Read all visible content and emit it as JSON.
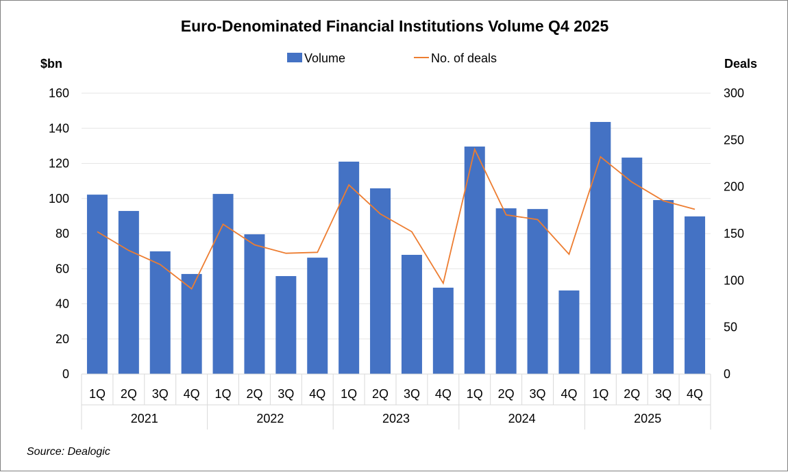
{
  "chart_data": {
    "type": "bar+line",
    "title": "Euro-Denominated Financial Institutions Volume Q4 2025",
    "ylabel_left": "$bn",
    "ylabel_right": "Deals",
    "ylim_left": [
      0,
      160
    ],
    "ylim_right": [
      0,
      300
    ],
    "yticks_left": [
      0,
      20,
      40,
      60,
      80,
      100,
      120,
      140,
      160
    ],
    "yticks_right": [
      0,
      50,
      100,
      150,
      200,
      250,
      300
    ],
    "grid": true,
    "legend_position": "top",
    "categories": [
      "1Q",
      "2Q",
      "3Q",
      "4Q",
      "1Q",
      "2Q",
      "3Q",
      "4Q",
      "1Q",
      "2Q",
      "3Q",
      "4Q",
      "1Q",
      "2Q",
      "3Q",
      "4Q",
      "1Q",
      "2Q",
      "3Q",
      "4Q"
    ],
    "years": [
      "2021",
      "2022",
      "2023",
      "2024",
      "2025"
    ],
    "series": [
      {
        "name": "Volume",
        "type": "bar",
        "axis": "left",
        "color": "#4472C4",
        "values": [
          102.2,
          92.9,
          69.9,
          57.0,
          102.6,
          79.6,
          55.8,
          66.3,
          121.0,
          105.8,
          67.9,
          49.2,
          129.6,
          94.4,
          94.0,
          47.6,
          143.6,
          123.3,
          99.1,
          89.8
        ]
      },
      {
        "name": "No. of deals",
        "type": "line",
        "axis": "right",
        "color": "#ED7D31",
        "values": [
          152,
          132,
          117,
          91,
          160,
          138,
          129,
          130,
          202,
          171,
          152,
          97,
          240,
          170,
          165,
          128,
          232,
          205,
          185,
          176
        ]
      }
    ]
  },
  "source": "Source: Dealogic"
}
